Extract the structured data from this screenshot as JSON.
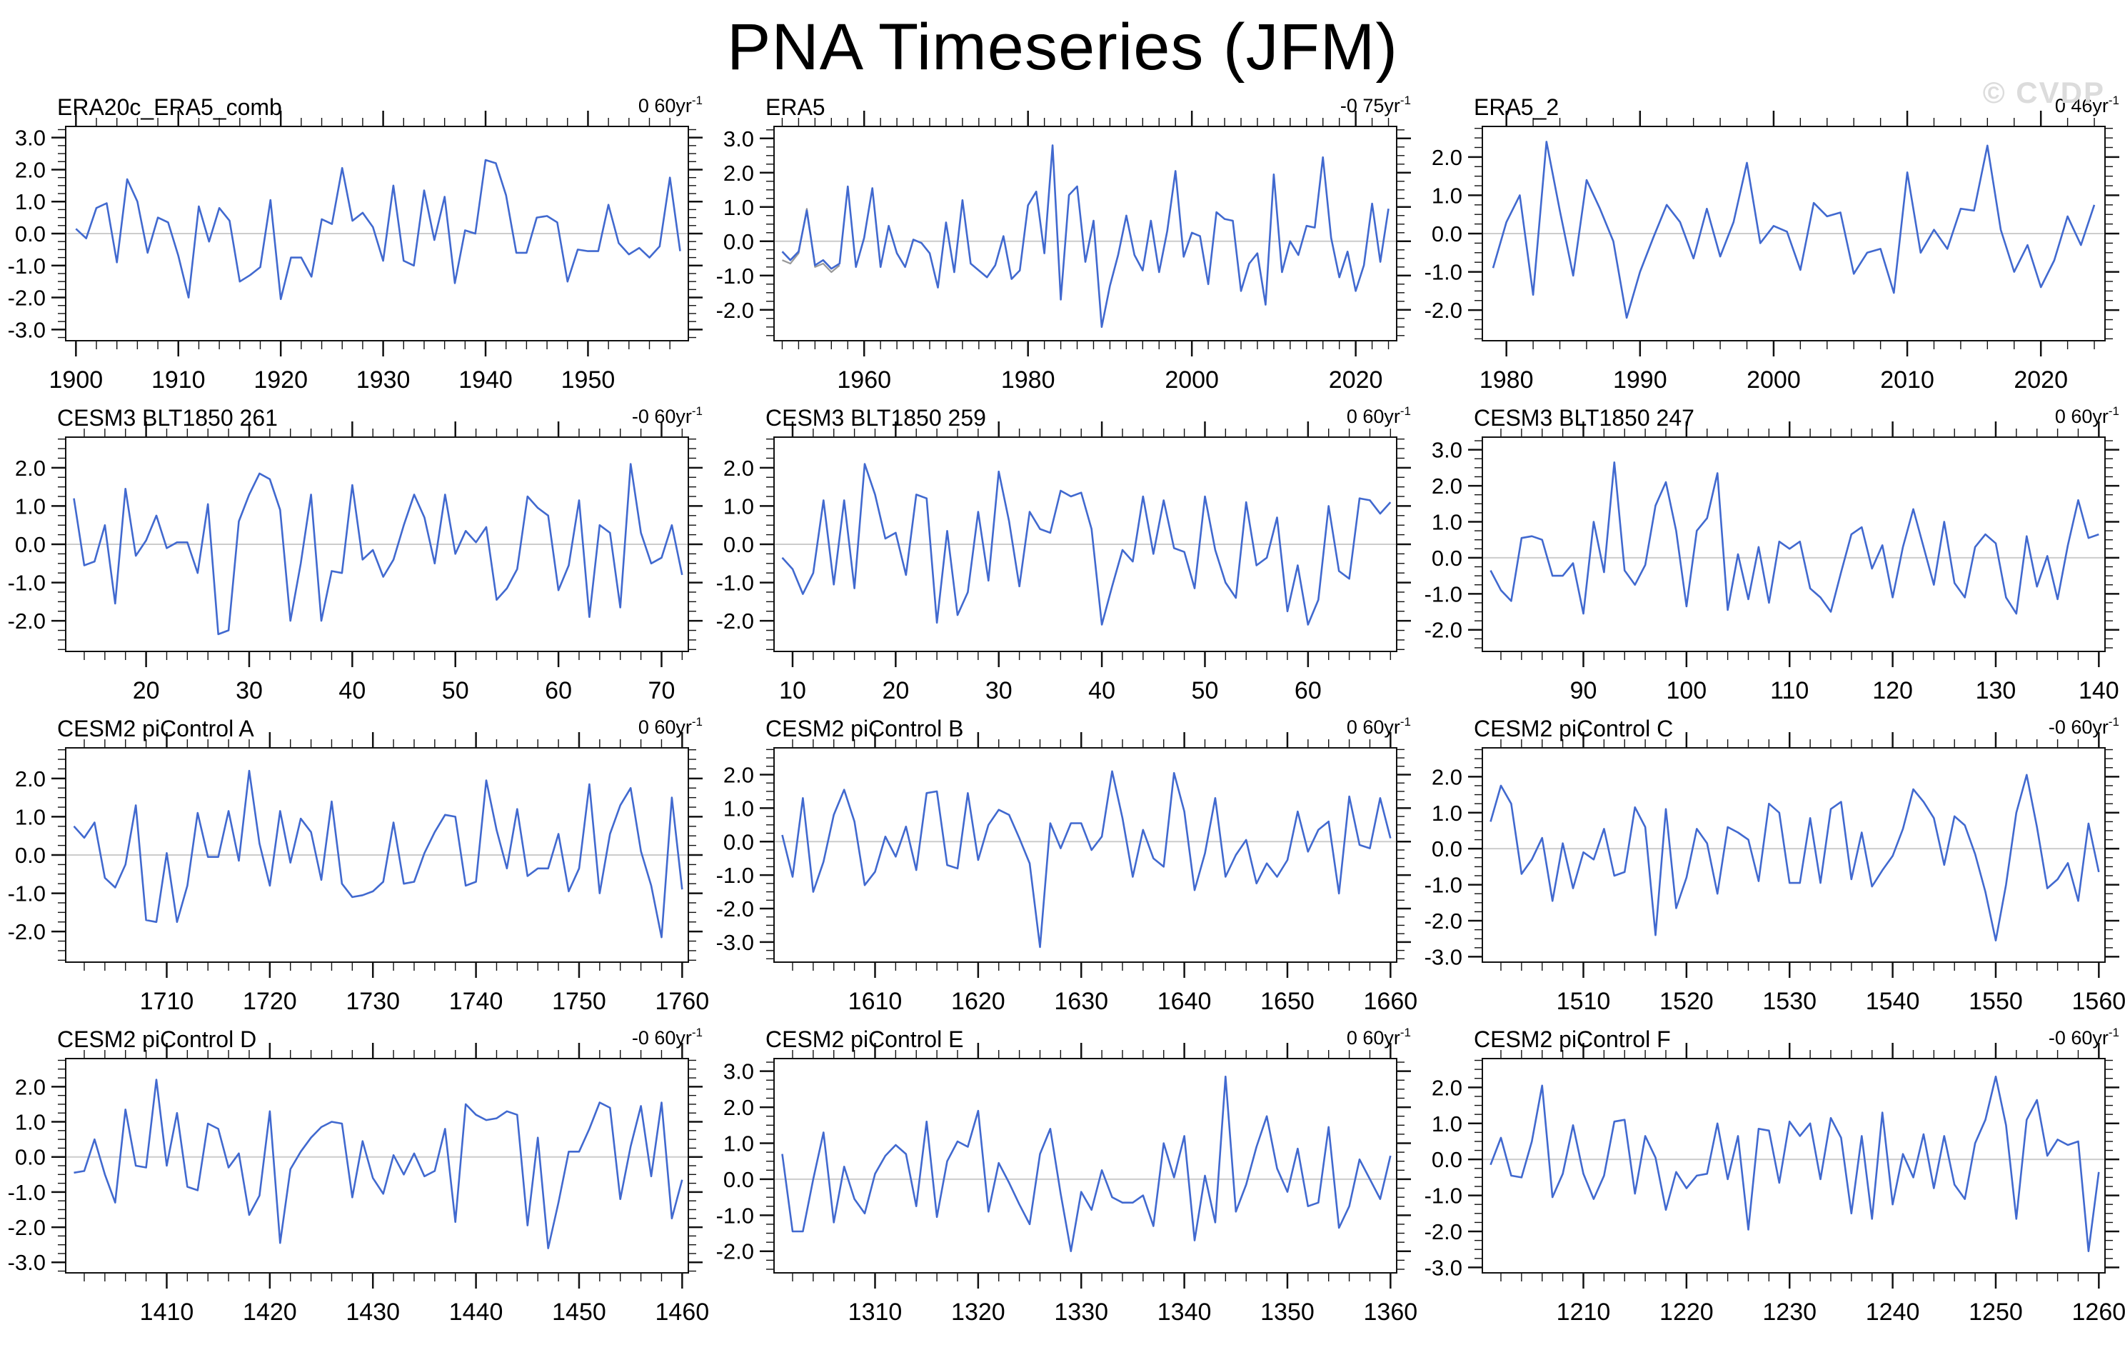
{
  "header": {
    "title": "PNA Timeseries (JFM)",
    "watermark": "© CVDP"
  },
  "style": {
    "line_color": "#4169cf",
    "gray_line_color": "#999999",
    "zero_line_color": "#cccccc",
    "frame_color": "#111111",
    "watermark_color": "#dcdcdc"
  },
  "chart_data": [
    {
      "type": "line",
      "title": "ERA20c_ERA5_comb",
      "trend": {
        "value": "0",
        "period": "60yr",
        "exponent": "-1"
      },
      "x_start": 1900,
      "xlim": [
        1899.0,
        1959.8
      ],
      "x_major_ticks": [
        1900,
        1910,
        1920,
        1930,
        1940,
        1950
      ],
      "x_minor_step": 2,
      "y_major_ticks": [
        3,
        2,
        1,
        0,
        -1,
        -2,
        -3
      ],
      "ylim": [
        -3.35,
        3.35
      ],
      "grid": false,
      "legend": "none",
      "values": [
        0.15,
        -0.15,
        0.8,
        0.95,
        -0.9,
        1.7,
        1.0,
        -0.6,
        0.5,
        0.35,
        -0.7,
        -2.0,
        0.85,
        -0.25,
        0.8,
        0.4,
        -1.5,
        -1.3,
        -1.05,
        1.05,
        -2.05,
        -0.75,
        -0.75,
        -1.35,
        0.45,
        0.3,
        2.05,
        0.4,
        0.65,
        0.2,
        -0.85,
        1.5,
        -0.85,
        -1.0,
        1.35,
        -0.2,
        1.15,
        -1.55,
        0.1,
        0.0,
        2.3,
        2.2,
        1.2,
        -0.6,
        -0.6,
        0.5,
        0.55,
        0.35,
        -1.5,
        -0.5,
        -0.55,
        -0.55,
        0.9,
        -0.3,
        -0.65,
        -0.45,
        -0.75,
        -0.4,
        1.75,
        -0.55
      ]
    },
    {
      "type": "line",
      "title": "ERA5",
      "trend": {
        "value": "-0",
        "period": "75yr",
        "exponent": "-1"
      },
      "x_start": 1950,
      "xlim": [
        1949.0,
        2025.0
      ],
      "x_major_ticks": [
        1960,
        1980,
        2000,
        2020
      ],
      "x_minor_step": 2,
      "y_major_ticks": [
        3,
        2,
        1,
        0,
        -1,
        -2
      ],
      "ylim": [
        -2.9,
        3.35
      ],
      "grid": false,
      "legend": "none",
      "values": [
        -0.3,
        -0.55,
        -0.3,
        0.9,
        -0.7,
        -0.55,
        -0.8,
        -0.65,
        1.6,
        -0.75,
        0.1,
        1.55,
        -0.75,
        0.45,
        -0.35,
        -0.75,
        0.05,
        -0.05,
        -0.35,
        -1.35,
        0.55,
        -0.9,
        1.2,
        -0.65,
        -0.85,
        -1.05,
        -0.7,
        0.15,
        -1.1,
        -0.85,
        1.05,
        1.45,
        -0.35,
        2.8,
        -1.7,
        1.35,
        1.6,
        -0.6,
        0.6,
        -2.5,
        -1.3,
        -0.4,
        0.75,
        -0.4,
        -0.85,
        0.6,
        -0.9,
        0.3,
        2.05,
        -0.45,
        0.25,
        0.15,
        -1.25,
        0.85,
        0.65,
        0.6,
        -1.45,
        -0.65,
        -0.35,
        -1.85,
        1.95,
        -0.9,
        0.0,
        -0.4,
        0.45,
        0.4,
        2.45,
        0.1,
        -1.05,
        -0.3,
        -1.45,
        -0.7,
        1.1,
        -0.6,
        0.95
      ],
      "gray_x_start": 1950,
      "gray_values": [
        -0.55,
        -0.65,
        -0.35,
        0.95,
        -0.75,
        -0.65,
        -0.9,
        -0.7
      ]
    },
    {
      "type": "line",
      "title": "ERA5_2",
      "trend": {
        "value": "0",
        "period": "46yr",
        "exponent": "-1"
      },
      "x_start": 1979,
      "xlim": [
        1978.2,
        2024.8
      ],
      "x_major_ticks": [
        1980,
        1990,
        2000,
        2010,
        2020
      ],
      "x_minor_step": 2,
      "y_major_ticks": [
        2,
        1,
        0,
        -1,
        -2
      ],
      "ylim": [
        -2.8,
        2.8
      ],
      "grid": false,
      "legend": "none",
      "values": [
        -0.9,
        0.3,
        1.0,
        -1.6,
        2.4,
        0.6,
        -1.1,
        1.4,
        0.65,
        -0.2,
        -2.2,
        -1.0,
        -0.1,
        0.75,
        0.3,
        -0.65,
        0.65,
        -0.6,
        0.3,
        1.85,
        -0.25,
        0.2,
        0.05,
        -0.95,
        0.8,
        0.45,
        0.55,
        -1.05,
        -0.5,
        -0.4,
        -1.55,
        1.6,
        -0.5,
        0.1,
        -0.4,
        0.65,
        0.6,
        2.3,
        0.1,
        -1.0,
        -0.3,
        -1.4,
        -0.7,
        0.45,
        -0.3,
        0.75
      ]
    },
    {
      "type": "line",
      "title": "CESM3 BLT1850 261",
      "trend": {
        "value": "-0",
        "period": "60yr",
        "exponent": "-1"
      },
      "x_start": 13,
      "xlim": [
        12.2,
        72.6
      ],
      "x_major_ticks": [
        20,
        30,
        40,
        50,
        60,
        70
      ],
      "x_minor_step": 2,
      "y_major_ticks": [
        2,
        1,
        0,
        -1,
        -2
      ],
      "ylim": [
        -2.8,
        2.8
      ],
      "grid": false,
      "legend": "none",
      "values": [
        1.2,
        -0.55,
        -0.45,
        0.5,
        -1.55,
        1.45,
        -0.3,
        0.1,
        0.75,
        -0.1,
        0.05,
        0.05,
        -0.75,
        1.05,
        -2.35,
        -2.25,
        0.6,
        1.3,
        1.85,
        1.7,
        0.9,
        -2.0,
        -0.5,
        1.3,
        -2.0,
        -0.7,
        -0.75,
        1.55,
        -0.4,
        -0.15,
        -0.85,
        -0.4,
        0.5,
        1.3,
        0.7,
        -0.5,
        1.3,
        -0.25,
        0.35,
        0.05,
        0.45,
        -1.45,
        -1.15,
        -0.65,
        1.25,
        0.95,
        0.75,
        -1.2,
        -0.55,
        1.15,
        -1.9,
        0.5,
        0.3,
        -1.65,
        2.1,
        0.3,
        -0.5,
        -0.35,
        0.5,
        -0.8
      ]
    },
    {
      "type": "line",
      "title": "CESM3 BLT1850 259",
      "trend": {
        "value": "0",
        "period": "60yr",
        "exponent": "-1"
      },
      "x_start": 9,
      "xlim": [
        8.2,
        68.6
      ],
      "x_major_ticks": [
        10,
        20,
        30,
        40,
        50,
        60
      ],
      "x_minor_step": 2,
      "y_major_ticks": [
        2,
        1,
        0,
        -1,
        -2
      ],
      "ylim": [
        -2.8,
        2.8
      ],
      "grid": false,
      "legend": "none",
      "values": [
        -0.35,
        -0.65,
        -1.3,
        -0.75,
        1.15,
        -1.05,
        1.15,
        -1.15,
        2.1,
        1.3,
        0.15,
        0.3,
        -0.8,
        1.3,
        1.2,
        -2.05,
        0.35,
        -1.85,
        -1.25,
        0.85,
        -0.95,
        1.9,
        0.6,
        -1.1,
        0.85,
        0.4,
        0.3,
        1.4,
        1.25,
        1.35,
        0.4,
        -2.1,
        -1.1,
        -0.15,
        -0.45,
        1.25,
        -0.25,
        1.15,
        -0.1,
        -0.2,
        -1.15,
        1.25,
        -0.15,
        -1.0,
        -1.4,
        1.1,
        -0.55,
        -0.35,
        0.7,
        -1.75,
        -0.55,
        -2.1,
        -1.45,
        1.0,
        -0.7,
        -0.9,
        1.2,
        1.15,
        0.8,
        1.1
      ]
    },
    {
      "type": "line",
      "title": "CESM3 BLT1850 247",
      "trend": {
        "value": "0",
        "period": "60yr",
        "exponent": "-1"
      },
      "x_start": 81,
      "xlim": [
        80.2,
        140.6
      ],
      "x_major_ticks": [
        90,
        100,
        110,
        120,
        130,
        140
      ],
      "x_minor_step": 2,
      "y_major_ticks": [
        3,
        2,
        1,
        0,
        -1,
        -2
      ],
      "ylim": [
        -2.6,
        3.35
      ],
      "grid": false,
      "legend": "none",
      "values": [
        -0.35,
        -0.9,
        -1.2,
        0.55,
        0.6,
        0.5,
        -0.5,
        -0.5,
        -0.15,
        -1.55,
        1.0,
        -0.4,
        2.65,
        -0.35,
        -0.75,
        -0.2,
        1.45,
        2.1,
        0.75,
        -1.35,
        0.75,
        1.1,
        2.35,
        -1.45,
        0.1,
        -1.15,
        0.3,
        -1.25,
        0.45,
        0.25,
        0.45,
        -0.85,
        -1.1,
        -1.5,
        -0.4,
        0.65,
        0.85,
        -0.3,
        0.35,
        -1.1,
        0.3,
        1.35,
        0.3,
        -0.75,
        1.0,
        -0.7,
        -1.1,
        0.3,
        0.65,
        0.4,
        -1.1,
        -1.55,
        0.6,
        -0.8,
        0.05,
        -1.15,
        0.35,
        1.6,
        0.55,
        0.65
      ]
    },
    {
      "type": "line",
      "title": "CESM2 piControl A",
      "trend": {
        "value": "0",
        "period": "60yr",
        "exponent": "-1"
      },
      "x_start": 1701,
      "xlim": [
        1700.2,
        1760.6
      ],
      "x_major_ticks": [
        1710,
        1720,
        1730,
        1740,
        1750,
        1760
      ],
      "x_minor_step": 2,
      "y_major_ticks": [
        2,
        1,
        0,
        -1,
        -2
      ],
      "ylim": [
        -2.8,
        2.8
      ],
      "grid": false,
      "legend": "none",
      "values": [
        0.75,
        0.45,
        0.85,
        -0.6,
        -0.85,
        -0.25,
        1.3,
        -1.7,
        -1.75,
        0.05,
        -1.75,
        -0.8,
        1.1,
        -0.05,
        -0.05,
        1.15,
        -0.15,
        2.2,
        0.3,
        -0.8,
        1.15,
        -0.2,
        0.95,
        0.6,
        -0.65,
        1.4,
        -0.75,
        -1.1,
        -1.05,
        -0.95,
        -0.7,
        0.85,
        -0.75,
        -0.7,
        0.05,
        0.6,
        1.05,
        1.0,
        -0.8,
        -0.7,
        1.95,
        0.65,
        -0.35,
        1.2,
        -0.55,
        -0.35,
        -0.35,
        0.55,
        -0.95,
        -0.35,
        1.85,
        -1.0,
        0.55,
        1.3,
        1.75,
        0.1,
        -0.8,
        -2.15,
        1.5,
        -0.9
      ]
    },
    {
      "type": "line",
      "title": "CESM2 piControl B",
      "trend": {
        "value": "0",
        "period": "60yr",
        "exponent": "-1"
      },
      "x_start": 1601,
      "xlim": [
        1600.2,
        1660.6
      ],
      "x_major_ticks": [
        1610,
        1620,
        1630,
        1640,
        1650,
        1660
      ],
      "x_minor_step": 2,
      "y_major_ticks": [
        2,
        1,
        0,
        -1,
        -2,
        -3
      ],
      "ylim": [
        -3.6,
        2.8
      ],
      "grid": false,
      "legend": "none",
      "values": [
        0.2,
        -1.05,
        1.3,
        -1.5,
        -0.6,
        0.8,
        1.55,
        0.6,
        -1.3,
        -0.9,
        0.15,
        -0.45,
        0.45,
        -0.85,
        1.45,
        1.5,
        -0.7,
        -0.8,
        1.45,
        -0.55,
        0.5,
        0.95,
        0.8,
        0.1,
        -0.65,
        -3.15,
        0.55,
        -0.2,
        0.55,
        0.55,
        -0.25,
        0.15,
        2.1,
        0.7,
        -1.05,
        0.35,
        -0.5,
        -0.75,
        2.05,
        0.9,
        -1.45,
        -0.35,
        1.3,
        -1.05,
        -0.4,
        0.05,
        -1.25,
        -0.65,
        -1.05,
        -0.55,
        0.9,
        -0.3,
        0.35,
        0.6,
        -1.55,
        1.35,
        -0.1,
        -0.2,
        1.3,
        0.1
      ]
    },
    {
      "type": "line",
      "title": "CESM2 piControl C",
      "trend": {
        "value": "-0",
        "period": "60yr",
        "exponent": "-1"
      },
      "x_start": 1501,
      "xlim": [
        1500.2,
        1560.6
      ],
      "x_major_ticks": [
        1510,
        1520,
        1530,
        1540,
        1550,
        1560
      ],
      "x_minor_step": 2,
      "y_major_ticks": [
        2,
        1,
        0,
        -1,
        -2,
        -3
      ],
      "ylim": [
        -3.15,
        2.8
      ],
      "grid": false,
      "legend": "none",
      "values": [
        0.75,
        1.75,
        1.25,
        -0.7,
        -0.3,
        0.3,
        -1.45,
        0.15,
        -1.1,
        -0.1,
        -0.3,
        0.55,
        -0.75,
        -0.65,
        1.15,
        0.6,
        -2.4,
        1.1,
        -1.65,
        -0.8,
        0.55,
        0.15,
        -1.25,
        0.6,
        0.45,
        0.25,
        -0.9,
        1.25,
        1.0,
        -0.95,
        -0.95,
        0.85,
        -0.95,
        1.1,
        1.3,
        -0.85,
        0.45,
        -1.05,
        -0.6,
        -0.2,
        0.55,
        1.65,
        1.3,
        0.85,
        -0.45,
        0.9,
        0.65,
        -0.15,
        -1.2,
        -2.55,
        -1.0,
        1.0,
        2.05,
        0.6,
        -1.1,
        -0.85,
        -0.4,
        -1.45,
        0.7,
        -0.65
      ]
    },
    {
      "type": "line",
      "title": "CESM2 piControl D",
      "trend": {
        "value": "-0",
        "period": "60yr",
        "exponent": "-1"
      },
      "x_start": 1401,
      "xlim": [
        1400.2,
        1460.6
      ],
      "x_major_ticks": [
        1410,
        1420,
        1430,
        1440,
        1450,
        1460
      ],
      "x_minor_step": 2,
      "y_major_ticks": [
        2,
        1,
        0,
        -1,
        -2,
        -3
      ],
      "ylim": [
        -3.3,
        2.8
      ],
      "grid": false,
      "legend": "none",
      "values": [
        -0.45,
        -0.4,
        0.5,
        -0.5,
        -1.3,
        1.35,
        -0.25,
        -0.3,
        2.2,
        -0.25,
        1.25,
        -0.85,
        -0.95,
        0.95,
        0.8,
        -0.3,
        0.1,
        -1.65,
        -1.1,
        1.3,
        -2.45,
        -0.35,
        0.15,
        0.55,
        0.85,
        1.0,
        0.95,
        -1.15,
        0.45,
        -0.6,
        -1.05,
        0.05,
        -0.5,
        0.1,
        -0.55,
        -0.4,
        0.8,
        -1.85,
        1.5,
        1.2,
        1.05,
        1.1,
        1.3,
        1.2,
        -1.95,
        0.55,
        -2.6,
        -1.3,
        0.15,
        0.15,
        0.8,
        1.55,
        1.4,
        -1.2,
        0.3,
        1.45,
        -0.55,
        1.55,
        -1.75,
        -0.65
      ]
    },
    {
      "type": "line",
      "title": "CESM2 piControl E",
      "trend": {
        "value": "0",
        "period": "60yr",
        "exponent": "-1"
      },
      "x_start": 1301,
      "xlim": [
        1300.2,
        1360.6
      ],
      "x_major_ticks": [
        1310,
        1320,
        1330,
        1340,
        1350,
        1360
      ],
      "x_minor_step": 2,
      "y_major_ticks": [
        3,
        2,
        1,
        0,
        -1,
        -2
      ],
      "ylim": [
        -2.6,
        3.35
      ],
      "grid": false,
      "legend": "none",
      "values": [
        0.7,
        -1.45,
        -1.45,
        0.0,
        1.3,
        -1.2,
        0.35,
        -0.55,
        -0.95,
        0.15,
        0.65,
        0.95,
        0.7,
        -0.75,
        1.6,
        -1.05,
        0.5,
        1.05,
        0.9,
        1.9,
        -0.9,
        0.45,
        -0.1,
        -0.7,
        -1.25,
        0.7,
        1.4,
        -0.4,
        -2.0,
        -0.35,
        -0.85,
        0.25,
        -0.5,
        -0.65,
        -0.65,
        -0.45,
        -1.3,
        1.0,
        0.05,
        1.2,
        -1.7,
        0.1,
        -1.2,
        2.85,
        -0.9,
        -0.15,
        0.9,
        1.75,
        0.3,
        -0.35,
        0.85,
        -0.75,
        -0.65,
        1.45,
        -1.35,
        -0.75,
        0.55,
        0.0,
        -0.55,
        0.65
      ]
    },
    {
      "type": "line",
      "title": "CESM2 piControl F",
      "trend": {
        "value": "-0",
        "period": "60yr",
        "exponent": "-1"
      },
      "x_start": 1201,
      "xlim": [
        1200.2,
        1260.6
      ],
      "x_major_ticks": [
        1210,
        1220,
        1230,
        1240,
        1250,
        1260
      ],
      "x_minor_step": 2,
      "y_major_ticks": [
        2,
        1,
        0,
        -1,
        -2,
        -3
      ],
      "ylim": [
        -3.15,
        2.8
      ],
      "grid": false,
      "legend": "none",
      "values": [
        -0.15,
        0.6,
        -0.45,
        -0.5,
        0.5,
        2.05,
        -1.05,
        -0.4,
        0.95,
        -0.4,
        -1.1,
        -0.45,
        1.05,
        1.1,
        -0.95,
        0.65,
        0.05,
        -1.4,
        -0.35,
        -0.8,
        -0.45,
        -0.4,
        1.0,
        -0.55,
        0.65,
        -1.95,
        0.85,
        0.8,
        -0.65,
        1.05,
        0.65,
        1.0,
        -0.55,
        1.15,
        0.6,
        -1.5,
        0.65,
        -1.65,
        1.3,
        -1.25,
        0.15,
        -0.5,
        0.7,
        -0.8,
        0.65,
        -0.7,
        -1.1,
        0.45,
        1.1,
        2.3,
        0.95,
        -1.65,
        1.1,
        1.65,
        0.1,
        0.55,
        0.4,
        0.5,
        -2.55,
        -0.35
      ]
    }
  ]
}
